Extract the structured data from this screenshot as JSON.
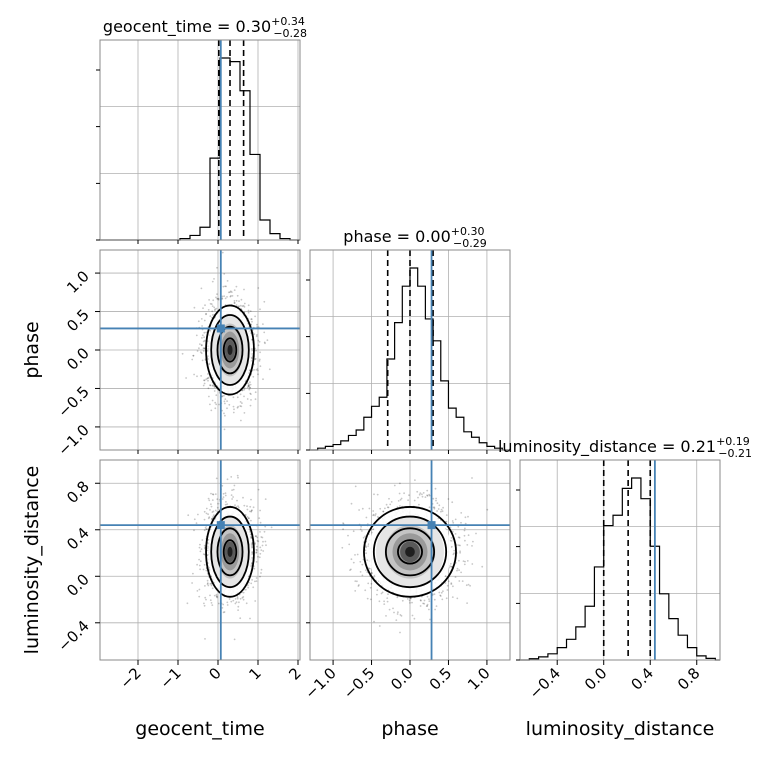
{
  "chart_data": {
    "type": "corner",
    "parameters": [
      "geocent_time",
      "phase",
      "luminosity_distance"
    ],
    "truths": [
      0.07,
      0.28,
      0.44
    ],
    "truth_color": "#4682b4",
    "titles": [
      {
        "param": "geocent_time",
        "median": "0.30",
        "plus": "+0.34",
        "minus": "−0.28"
      },
      {
        "param": "phase",
        "median": "0.00",
        "plus": "+0.30",
        "minus": "−0.29"
      },
      {
        "param": "luminosity_distance",
        "median": "0.21",
        "plus": "+0.19",
        "minus": "−0.21"
      }
    ],
    "axes": [
      {
        "name": "geocent_time",
        "range": [
          -2.95,
          2.05
        ],
        "ticks": [
          -2,
          -1,
          0,
          1,
          2
        ],
        "tick_labels": [
          "−2",
          "−1",
          "0",
          "1",
          "2"
        ]
      },
      {
        "name": "phase",
        "range": [
          -1.3,
          1.3
        ],
        "ticks": [
          -1.0,
          -0.5,
          0.0,
          0.5,
          1.0
        ],
        "tick_labels": [
          "−1.0",
          "−0.5",
          "0.0",
          "0.5",
          "1.0"
        ]
      },
      {
        "name": "luminosity_distance",
        "range": [
          -0.72,
          1.0
        ],
        "ticks": [
          -0.4,
          0.0,
          0.4,
          0.8
        ],
        "tick_labels": [
          "−0.4",
          "0.0",
          "0.4",
          "0.8"
        ]
      }
    ],
    "histograms": [
      {
        "param": "geocent_time",
        "quantiles": [
          0.02,
          0.3,
          0.64
        ],
        "edges": [
          -2.95,
          -2.7,
          -2.45,
          -2.2,
          -1.95,
          -1.7,
          -1.45,
          -1.2,
          -0.95,
          -0.7,
          -0.45,
          -0.2,
          0.05,
          0.3,
          0.55,
          0.8,
          1.05,
          1.3,
          1.55,
          1.8,
          2.05
        ],
        "counts": [
          0,
          0,
          0,
          0,
          0,
          0,
          0,
          0,
          0.8,
          2.5,
          7.0,
          45,
          100,
          98,
          82,
          47,
          11,
          3.5,
          0.8,
          0
        ]
      },
      {
        "param": "phase",
        "quantiles": [
          -0.29,
          0.0,
          0.3
        ],
        "edges": [
          -1.3,
          -1.2,
          -1.1,
          -1.0,
          -0.9,
          -0.8,
          -0.7,
          -0.6,
          -0.5,
          -0.4,
          -0.3,
          -0.2,
          -0.1,
          0.0,
          0.1,
          0.2,
          0.3,
          0.4,
          0.5,
          0.6,
          0.7,
          0.8,
          0.9,
          1.0,
          1.1,
          1.2,
          1.3
        ],
        "counts": [
          0,
          1,
          2,
          3,
          5,
          8,
          11,
          18,
          24,
          29,
          50,
          70,
          90,
          100,
          90,
          72,
          60,
          38,
          23,
          18,
          10,
          7,
          4,
          2,
          1,
          0
        ]
      },
      {
        "param": "luminosity_distance",
        "quantiles": [
          0.0,
          0.21,
          0.4
        ],
        "edges": [
          -0.72,
          -0.64,
          -0.56,
          -0.48,
          -0.4,
          -0.32,
          -0.24,
          -0.16,
          -0.08,
          0.0,
          0.08,
          0.16,
          0.24,
          0.32,
          0.4,
          0.48,
          0.56,
          0.64,
          0.72,
          0.8,
          0.88,
          0.96,
          1.0
        ],
        "counts": [
          0,
          0.6,
          1.5,
          3,
          6,
          10,
          16,
          26,
          45,
          65,
          70,
          83,
          88,
          78,
          55,
          32,
          20,
          12,
          6,
          2,
          0.8,
          0
        ]
      }
    ],
    "joint": [
      {
        "x": "geocent_time",
        "y": "phase",
        "center": [
          0.3,
          0.0
        ],
        "sd": [
          0.3,
          0.3
        ],
        "corr": 0.0,
        "truth_x": 0.07,
        "truth_y": 0.28
      },
      {
        "x": "geocent_time",
        "y": "luminosity_distance",
        "center": [
          0.3,
          0.21
        ],
        "sd": [
          0.3,
          0.2
        ],
        "corr": 0.0,
        "truth_x": 0.07,
        "truth_y": 0.44
      },
      {
        "x": "phase",
        "y": "luminosity_distance",
        "center": [
          0.0,
          0.21
        ],
        "sd": [
          0.3,
          0.2
        ],
        "corr": 0.0,
        "truth_x": 0.28,
        "truth_y": 0.44
      }
    ],
    "grid": true
  }
}
